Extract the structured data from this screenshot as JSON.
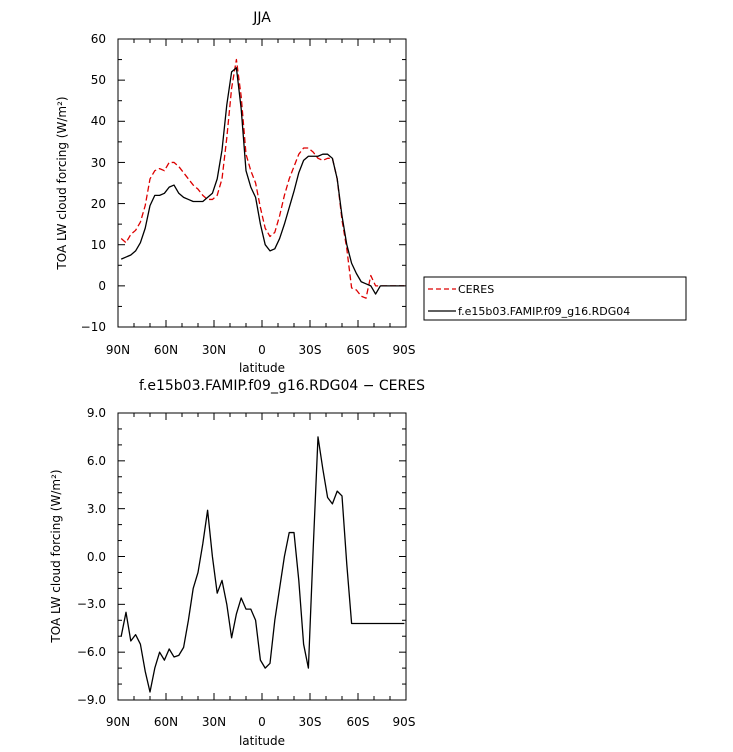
{
  "chart_data": [
    {
      "type": "line",
      "title": "JJA",
      "xlabel": "latitude",
      "ylabel": "TOA LW cloud forcing (W/m²)",
      "x_tick_labels": [
        "90N",
        "60N",
        "30N",
        "0",
        "30S",
        "60S",
        "90S"
      ],
      "y_tick_labels": [
        "60",
        "50",
        "40",
        "30",
        "20",
        "10",
        "0",
        "−10"
      ],
      "xlim": [
        90,
        -90
      ],
      "ylim": [
        -10,
        60
      ],
      "grid": false,
      "legend": "outside-right",
      "x": [
        88,
        85,
        82,
        79,
        76,
        73,
        70,
        67,
        64,
        61,
        58,
        55,
        52,
        49,
        46,
        43,
        40,
        37,
        34,
        31,
        28,
        25,
        22,
        19,
        16,
        13,
        10,
        7,
        4,
        1,
        -2,
        -5,
        -8,
        -11,
        -14,
        -17,
        -20,
        -23,
        -26,
        -29,
        -32,
        -35,
        -38,
        -41,
        -44,
        -47,
        -50,
        -53,
        -56,
        -59,
        -62,
        -65,
        -68,
        -71,
        -74,
        -77,
        -80,
        -83,
        -86,
        -89
      ],
      "series": [
        {
          "name": "CERES",
          "color": "#dd0000",
          "style": "dashed",
          "values": [
            11.5,
            10.5,
            12.5,
            13.5,
            15.5,
            19.5,
            26,
            28,
            28.5,
            28,
            30,
            30,
            29,
            27.5,
            26,
            24.5,
            23.5,
            22,
            21,
            21,
            22,
            26,
            36,
            48,
            55,
            46,
            32,
            28,
            25,
            19,
            14,
            12,
            13,
            17,
            22,
            26,
            29,
            32,
            33.5,
            33.5,
            32.5,
            31,
            30.5,
            31,
            31,
            26,
            16,
            9,
            -0.5,
            -1,
            -2.5,
            -3,
            2.5,
            0,
            0,
            0,
            0,
            0,
            0,
            0
          ]
        },
        {
          "name": "f.e15b03.FAMIP.f09_g16.RDG04",
          "color": "#000000",
          "style": "solid",
          "values": [
            6.5,
            7,
            7.5,
            8.5,
            10.5,
            14,
            19.5,
            22,
            22,
            22.5,
            24,
            24.5,
            22.5,
            21.5,
            21,
            20.5,
            20.5,
            20.5,
            21.5,
            22.5,
            26,
            33,
            44,
            52,
            53,
            43,
            28,
            24,
            21.5,
            15,
            10,
            8.5,
            9,
            11.5,
            15,
            19,
            23,
            27.5,
            30.5,
            31.5,
            31.5,
            31.5,
            32,
            32,
            31,
            26,
            17,
            10,
            5.5,
            3,
            1,
            0.5,
            0,
            -2,
            0,
            0,
            0,
            0,
            0,
            0
          ]
        }
      ]
    },
    {
      "type": "line",
      "title": "f.e15b03.FAMIP.f09_g16.RDG04 − CERES",
      "xlabel": "latitude",
      "ylabel": "TOA LW cloud forcing (W/m²)",
      "x_tick_labels": [
        "90N",
        "60N",
        "30N",
        "0",
        "30S",
        "60S",
        "90S"
      ],
      "y_tick_labels": [
        "9.0",
        "6.0",
        "3.0",
        "0.0",
        "−3.0",
        "−6.0",
        "−9.0"
      ],
      "xlim": [
        90,
        -90
      ],
      "ylim": [
        -9,
        9
      ],
      "grid": false,
      "x": [
        88,
        85,
        82,
        79,
        76,
        73,
        70,
        67,
        64,
        61,
        58,
        55,
        52,
        49,
        46,
        43,
        40,
        37,
        34,
        31,
        28,
        25,
        22,
        19,
        16,
        13,
        10,
        7,
        4,
        1,
        -2,
        -5,
        -8,
        -11,
        -14,
        -17,
        -20,
        -23,
        -26,
        -29,
        -32,
        -35,
        -38,
        -41,
        -44,
        -47,
        -50,
        -53,
        -56,
        -59,
        -62,
        -65,
        -68,
        -71,
        -74,
        -77,
        -80,
        -83,
        -86,
        -89
      ],
      "series": [
        {
          "name": "",
          "color": "#000000",
          "style": "solid",
          "values": [
            -5,
            -3.5,
            -5.3,
            -4.9,
            -5.5,
            -7.2,
            -8.5,
            -7,
            -6,
            -6.5,
            -5.8,
            -6.3,
            -6.2,
            -5.7,
            -4,
            -2,
            -1,
            0.8,
            2.9,
            0,
            -2.3,
            -1.5,
            -3,
            -5.1,
            -3.6,
            -2.6,
            -3.3,
            -3.3,
            -4,
            -6.5,
            -7,
            -6.7,
            -4,
            -2,
            0,
            1.5,
            1.5,
            -1.5,
            -5.5,
            -7,
            0.5,
            7.5,
            5.5,
            3.7,
            3.3,
            4.1,
            3.8,
            -0.5,
            -4.2,
            -4.2,
            -4.2,
            -4.2,
            -4.2,
            -4.2,
            -4.2,
            -4.2,
            -4.2,
            -4.2,
            -4.2,
            -4.2
          ]
        }
      ]
    }
  ]
}
